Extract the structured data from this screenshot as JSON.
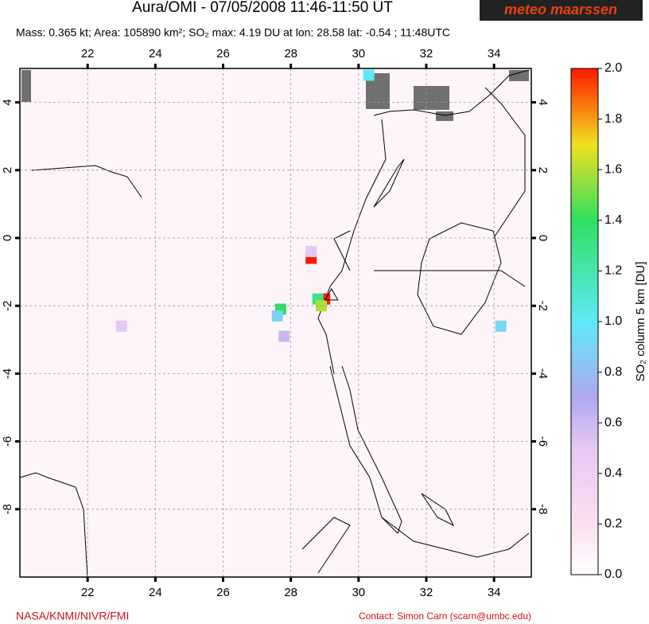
{
  "header": {
    "title": "Aura/OMI - 07/05/2008 11:46-11:50 UT",
    "logo": "meteo maarssen",
    "subtitle": "Mass: 0.365 kt; Area: 105890 km²; SO₂ max: 4.19 DU at lon: 28.58 lat: -0.54 ; 11:48UTC"
  },
  "map": {
    "xlim": [
      20,
      35.1
    ],
    "ylim": [
      -10,
      5
    ],
    "xticks": [
      22,
      24,
      26,
      28,
      30,
      32,
      34
    ],
    "yticks": [
      4,
      2,
      0,
      -2,
      -4,
      -6,
      -8
    ],
    "plumes": [
      {
        "lon": 28.6,
        "lat": -0.6,
        "value": 2.0
      },
      {
        "lon": 28.6,
        "lat": -0.4,
        "value": 0.5
      },
      {
        "lon": 29.0,
        "lat": -1.8,
        "value": 2.0
      },
      {
        "lon": 28.8,
        "lat": -1.8,
        "value": 1.3
      },
      {
        "lon": 28.9,
        "lat": -2.0,
        "value": 1.6
      },
      {
        "lon": 27.7,
        "lat": -2.1,
        "value": 1.4
      },
      {
        "lon": 27.6,
        "lat": -2.3,
        "value": 0.9
      },
      {
        "lon": 27.8,
        "lat": -2.9,
        "value": 0.6
      },
      {
        "lon": 23.0,
        "lat": -2.6,
        "value": 0.5
      },
      {
        "lon": 30.3,
        "lat": 4.8,
        "value": 1.0
      },
      {
        "lon": 34.2,
        "lat": -2.6,
        "value": 0.9
      }
    ]
  },
  "colorbar": {
    "lim": [
      0,
      2
    ],
    "label": "SO₂ column 5 km [DU]",
    "ticks": [
      {
        "value": 0,
        "label": "0.0"
      },
      {
        "value": 0.2,
        "label": "0.2"
      },
      {
        "value": 0.4,
        "label": "0.4"
      },
      {
        "value": 0.6,
        "label": "0.6"
      },
      {
        "value": 0.8,
        "label": "0.8"
      },
      {
        "value": 1,
        "label": "1.0"
      },
      {
        "value": 1.2,
        "label": "1.2"
      },
      {
        "value": 1.4,
        "label": "1.4"
      },
      {
        "value": 1.6,
        "label": "1.6"
      },
      {
        "value": 1.8,
        "label": "1.8"
      },
      {
        "value": 2,
        "label": "2.0"
      }
    ]
  },
  "footer": {
    "left": "NASA/KNMI/NIVR/FMI",
    "right": "Contact: Simon Carn (scarn@umbc.edu)"
  }
}
